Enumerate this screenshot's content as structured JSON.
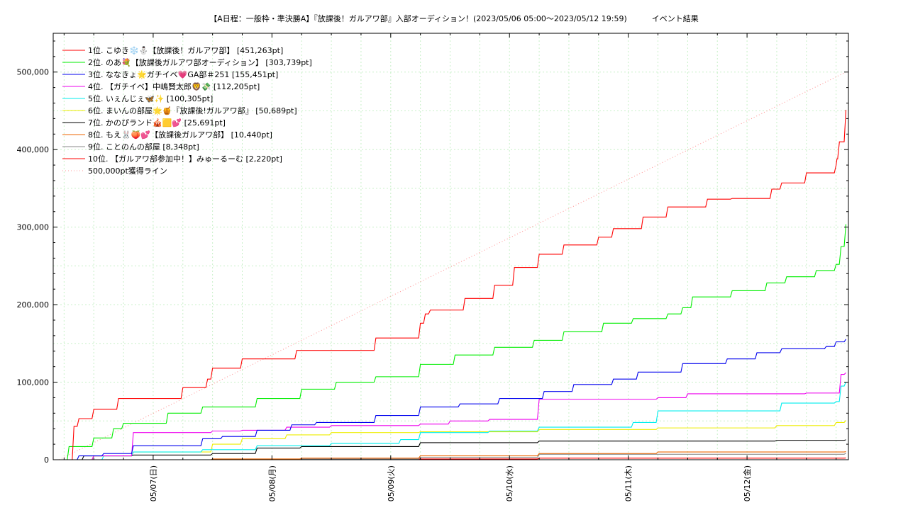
{
  "chart_data": {
    "type": "line",
    "title": "【A日程：一般枠・準決勝A】『放課後！ガルアワ部』入部オーディション！(2023/05/06 05:00～2023/05/12 19:59)",
    "subtitle": "イベント結果",
    "xlabel": "",
    "ylabel": "",
    "x_ticks": [
      "05/07(日)",
      "05/08(月)",
      "05/09(火)",
      "05/10(水)",
      "05/11(木)",
      "05/12(金)"
    ],
    "y_ticks": [
      "0",
      "100,000",
      "200,000",
      "300,000",
      "400,000",
      "500,000"
    ],
    "xlim": [
      "2023/05/06 05:00",
      "2023/05/12 19:59"
    ],
    "ylim": [
      0,
      550000
    ],
    "grid": true,
    "legend_position": "top-left",
    "series": [
      {
        "name": "1位. こゆき❄️⛄【放課後！ガルアワ部】 [451,263pt]",
        "color": "#ff0000",
        "x": [
          "05/06 05:00",
          "05/06 08:00",
          "05/06 09:00",
          "05/06 12:00",
          "05/06 17:00",
          "05/06 21:00",
          "05/07 06:00",
          "05/07 11:00",
          "05/07 12:00",
          "05/07 18:00",
          "05/07 21:00",
          "05/08 05:00",
          "05/08 16:00",
          "05/08 21:00",
          "05/09 06:00",
          "05/09 07:00",
          "05/09 08:00",
          "05/09 10:00",
          "05/09 15:00",
          "05/09 21:00",
          "05/10 01:00",
          "05/10 06:00",
          "05/10 11:00",
          "05/10 18:00",
          "05/10 21:00",
          "05/11 03:00",
          "05/11 08:00",
          "05/11 16:00",
          "05/11 21:00",
          "05/12 05:00",
          "05/12 07:00",
          "05/12 12:00",
          "05/12 18:00",
          "05/12 18:10",
          "05/12 18:40",
          "05/12 19:59"
        ],
        "y": [
          0,
          43000,
          53000,
          65000,
          79000,
          79000,
          93000,
          104000,
          118000,
          130000,
          130000,
          141000,
          141000,
          157000,
          176000,
          188000,
          193000,
          193000,
          208000,
          225000,
          248000,
          265000,
          277000,
          287000,
          298000,
          313000,
          326000,
          336000,
          337000,
          349000,
          357000,
          370000,
          380000,
          388000,
          410000,
          451263
        ]
      },
      {
        "name": "2位. のあ💐【放課後ガルアワ部オーディション】 [303,739pt]",
        "color": "#00ee00",
        "x": [
          "05/06 05:00",
          "05/06 07:00",
          "05/06 12:00",
          "05/06 16:00",
          "05/06 18:00",
          "05/07 03:00",
          "05/07 10:00",
          "05/07 21:00",
          "05/08 06:00",
          "05/08 13:00",
          "05/08 21:00",
          "05/09 06:00",
          "05/09 13:00",
          "05/09 21:00",
          "05/10 05:00",
          "05/10 11:00",
          "05/10 19:00",
          "05/11 01:00",
          "05/11 08:00",
          "05/11 11:00",
          "05/11 13:00",
          "05/11 21:00",
          "05/12 04:00",
          "05/12 08:00",
          "05/12 14:00",
          "05/12 18:00",
          "05/12 19:00",
          "05/12 19:59"
        ],
        "y": [
          0,
          17000,
          28000,
          40000,
          47000,
          60000,
          68000,
          79000,
          91000,
          100000,
          107000,
          123000,
          135000,
          145000,
          154000,
          165000,
          176000,
          182000,
          188000,
          196000,
          210000,
          218000,
          228000,
          236000,
          244000,
          252000,
          275000,
          303739
        ]
      },
      {
        "name": "3位. ななきょ🌟ガチイベ💗GA部＃251 [155,451pt]",
        "color": "#0000ee",
        "x": [
          "05/06 05:00",
          "05/06 09:00",
          "05/06 14:00",
          "05/06 20:00",
          "05/07 10:00",
          "05/07 14:00",
          "05/07 21:00",
          "05/08 04:00",
          "05/08 09:00",
          "05/08 21:00",
          "05/09 06:00",
          "05/09 14:00",
          "05/09 22:00",
          "05/10 07:00",
          "05/10 13:00",
          "05/10 21:00",
          "05/11 02:00",
          "05/11 11:00",
          "05/11 20:00",
          "05/12 02:00",
          "05/12 07:00",
          "05/12 16:00",
          "05/12 18:00",
          "05/12 19:59"
        ],
        "y": [
          0,
          5000,
          8000,
          18000,
          27000,
          30000,
          38000,
          45000,
          48000,
          57000,
          68000,
          72000,
          79000,
          88000,
          97000,
          104000,
          113000,
          124000,
          130000,
          138000,
          143000,
          146000,
          152000,
          155451
        ]
      },
      {
        "name": "4位. 【ガチイベ】中嶋賢太郎🦁💸 [112,205pt]",
        "color": "#ee00ee",
        "x": [
          "05/06 05:00",
          "05/06 12:00",
          "05/06 20:00",
          "05/07 12:00",
          "05/07 18:00",
          "05/08 03:00",
          "05/08 12:00",
          "05/09 06:00",
          "05/09 12:00",
          "05/09 20:00",
          "05/10 06:00",
          "05/11 06:00",
          "05/11 12:00",
          "05/12 12:00",
          "05/12 19:00",
          "05/12 19:59"
        ],
        "y": [
          0,
          5000,
          35000,
          37000,
          38000,
          42000,
          44000,
          46000,
          50000,
          52000,
          78000,
          80000,
          85000,
          86000,
          110000,
          112205
        ]
      },
      {
        "name": "5位. いぇんじぇ🦋✨ [100,305pt]",
        "color": "#00eeee",
        "x": [
          "05/06 05:00",
          "05/06 14:00",
          "05/06 20:00",
          "05/07 10:00",
          "05/07 21:00",
          "05/08 12:00",
          "05/09 02:00",
          "05/09 06:00",
          "05/09 20:00",
          "05/10 06:00",
          "05/11 01:00",
          "05/11 06:00",
          "05/11 21:00",
          "05/12 07:00",
          "05/12 18:00",
          "05/12 19:00",
          "05/12 19:59"
        ],
        "y": [
          0,
          5000,
          10000,
          13000,
          18000,
          21000,
          26000,
          35000,
          37000,
          42000,
          48000,
          63000,
          63000,
          73000,
          75000,
          95000,
          100305
        ]
      },
      {
        "name": "6位. まいんの部屋🌟🍯『放課後!ガルアワ部』 [50,689pt]",
        "color": "#eeee00",
        "x": [
          "05/06 05:00",
          "05/06 12:00",
          "05/06 20:00",
          "05/07 12:00",
          "05/07 18:00",
          "05/08 03:00",
          "05/08 12:00",
          "05/09 06:00",
          "05/10 06:00",
          "05/11 06:00",
          "05/12 06:00",
          "05/12 18:00",
          "05/12 19:59"
        ],
        "y": [
          0,
          5000,
          10000,
          20000,
          27000,
          32000,
          35000,
          36000,
          39000,
          41000,
          44000,
          48000,
          50689
        ]
      },
      {
        "name": "7位. かのぴランド🎪🟨💕 [25,691pt]",
        "color": "#000000",
        "x": [
          "05/06 05:00",
          "05/06 10:00",
          "05/06 20:00",
          "05/07 12:00",
          "05/07 21:00",
          "05/08 06:00",
          "05/09 06:00",
          "05/10 06:00",
          "05/12 06:00",
          "05/12 19:59"
        ],
        "y": [
          0,
          5000,
          6000,
          8000,
          15000,
          17000,
          22000,
          24000,
          25000,
          25691
        ]
      },
      {
        "name": "8位. もえ🐰🍑💕【放課後ガルアワ部】 [10,440pt]",
        "color": "#ee6600",
        "x": [
          "05/06 05:00",
          "05/07 12:00",
          "05/08 06:00",
          "05/09 06:00",
          "05/10 06:00",
          "05/11 06:00",
          "05/12 19:59"
        ],
        "y": [
          0,
          1000,
          2000,
          5000,
          8000,
          10000,
          10440
        ]
      },
      {
        "name": "9位. ことのんの部屋 [8,348pt]",
        "color": "#888888",
        "x": [
          "05/06 05:00",
          "05/08 06:00",
          "05/09 06:00",
          "05/10 06:00",
          "05/12 19:59"
        ],
        "y": [
          0,
          1000,
          3000,
          7000,
          8348
        ]
      },
      {
        "name": "10位. 【ガルアワ部参加中！】みゅーるーむ [2,220pt]",
        "color": "#ff0000",
        "x": [
          "05/06 05:00",
          "05/08 06:00",
          "05/10 06:00",
          "05/12 19:59"
        ],
        "y": [
          0,
          1000,
          2000,
          2220
        ]
      },
      {
        "name": "500,000pt獲得ライン",
        "color": "#ff9999",
        "dashed": true,
        "x": [
          "05/06 05:00",
          "05/12 19:59"
        ],
        "y": [
          0,
          500000
        ]
      }
    ]
  }
}
